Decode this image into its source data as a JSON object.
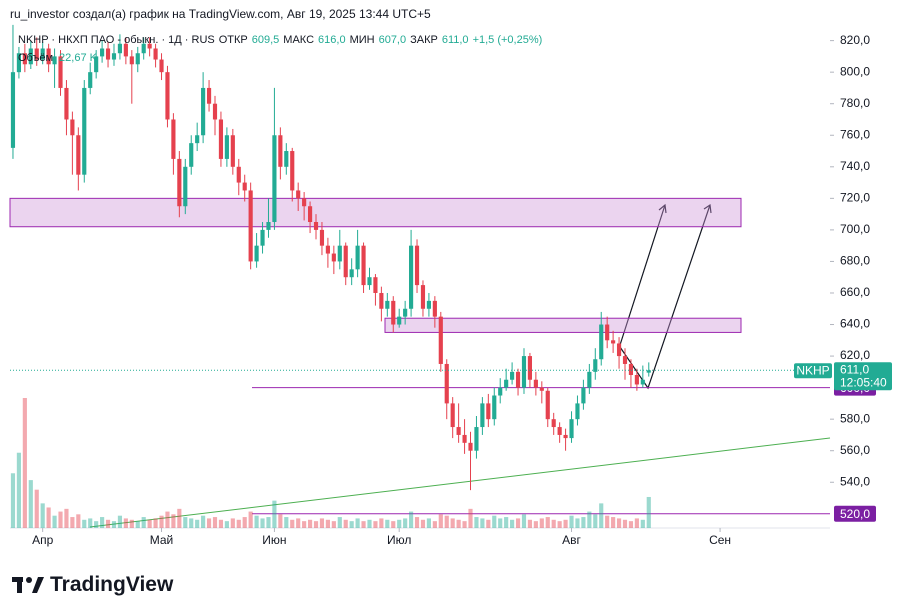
{
  "header": {
    "attribution": "ru_investor создал(а) график на TradingView.com, Авг 19, 2025 13:44 UTC+5",
    "brand": "TradingView"
  },
  "chart_data": {
    "type": "candlestick",
    "symbol_line": "NKHP · НКХП ПАО - обыкн. · 1Д · RUS",
    "ohlc_labels": [
      {
        "label": "ОТКР",
        "value": "609,5"
      },
      {
        "label": "МАКС",
        "value": "616,0"
      },
      {
        "label": "МИН",
        "value": "607,0"
      },
      {
        "label": "ЗАКР",
        "value": "611,0"
      }
    ],
    "change": "+1,5 (+0,25%)",
    "volume_label": "Объём",
    "volume_value": "22,67 K",
    "up_color": "#22ab94",
    "down_color": "#e5414e",
    "candles": [
      [
        752,
        830,
        745,
        800
      ],
      [
        800,
        816,
        796,
        812
      ],
      [
        812,
        818,
        800,
        805
      ],
      [
        805,
        820,
        802,
        815
      ],
      [
        815,
        822,
        804,
        808
      ],
      [
        808,
        819,
        805,
        815
      ],
      [
        815,
        818,
        800,
        805
      ],
      [
        805,
        815,
        790,
        810
      ],
      [
        810,
        814,
        785,
        790
      ],
      [
        790,
        795,
        760,
        770
      ],
      [
        770,
        775,
        735,
        760
      ],
      [
        760,
        765,
        725,
        735
      ],
      [
        735,
        795,
        730,
        790
      ],
      [
        790,
        806,
        786,
        800
      ],
      [
        800,
        814,
        796,
        810
      ],
      [
        810,
        820,
        806,
        815
      ],
      [
        815,
        819,
        803,
        808
      ],
      [
        808,
        818,
        804,
        812
      ],
      [
        812,
        824,
        808,
        818
      ],
      [
        818,
        822,
        805,
        810
      ],
      [
        810,
        814,
        780,
        805
      ],
      [
        805,
        816,
        800,
        812
      ],
      [
        812,
        822,
        808,
        818
      ],
      [
        818,
        822,
        810,
        815
      ],
      [
        815,
        818,
        803,
        808
      ],
      [
        808,
        812,
        795,
        800
      ],
      [
        800,
        804,
        765,
        770
      ],
      [
        770,
        774,
        735,
        745
      ],
      [
        745,
        750,
        708,
        715
      ],
      [
        715,
        745,
        710,
        740
      ],
      [
        740,
        760,
        735,
        755
      ],
      [
        755,
        768,
        750,
        760
      ],
      [
        760,
        800,
        755,
        790
      ],
      [
        790,
        795,
        775,
        780
      ],
      [
        780,
        785,
        760,
        770
      ],
      [
        770,
        775,
        740,
        745
      ],
      [
        745,
        765,
        740,
        760
      ],
      [
        760,
        764,
        735,
        740
      ],
      [
        740,
        745,
        722,
        730
      ],
      [
        730,
        735,
        718,
        725
      ],
      [
        725,
        730,
        675,
        680
      ],
      [
        680,
        698,
        676,
        690
      ],
      [
        690,
        705,
        685,
        700
      ],
      [
        700,
        720,
        695,
        705
      ],
      [
        705,
        790,
        700,
        760
      ],
      [
        760,
        765,
        732,
        740
      ],
      [
        740,
        755,
        735,
        750
      ],
      [
        750,
        752,
        718,
        725
      ],
      [
        725,
        730,
        712,
        720
      ],
      [
        720,
        724,
        706,
        715
      ],
      [
        715,
        718,
        698,
        705
      ],
      [
        705,
        710,
        694,
        700
      ],
      [
        700,
        705,
        684,
        690
      ],
      [
        690,
        695,
        676,
        685
      ],
      [
        685,
        690,
        672,
        680
      ],
      [
        680,
        700,
        675,
        690
      ],
      [
        690,
        692,
        665,
        670
      ],
      [
        670,
        682,
        665,
        675
      ],
      [
        675,
        700,
        670,
        690
      ],
      [
        690,
        692,
        660,
        665
      ],
      [
        665,
        676,
        662,
        670
      ],
      [
        670,
        672,
        652,
        660
      ],
      [
        660,
        664,
        642,
        650
      ],
      [
        650,
        660,
        645,
        655
      ],
      [
        655,
        658,
        635,
        640
      ],
      [
        640,
        650,
        638,
        645
      ],
      [
        645,
        655,
        640,
        650
      ],
      [
        650,
        700,
        645,
        690
      ],
      [
        690,
        694,
        660,
        665
      ],
      [
        665,
        668,
        645,
        650
      ],
      [
        650,
        660,
        645,
        655
      ],
      [
        655,
        658,
        638,
        645
      ],
      [
        645,
        648,
        610,
        615
      ],
      [
        615,
        618,
        580,
        590
      ],
      [
        590,
        594,
        568,
        575
      ],
      [
        575,
        590,
        565,
        570
      ],
      [
        570,
        580,
        558,
        565
      ],
      [
        565,
        572,
        535,
        560
      ],
      [
        560,
        582,
        555,
        575
      ],
      [
        575,
        594,
        570,
        590
      ],
      [
        590,
        596,
        575,
        580
      ],
      [
        580,
        600,
        576,
        595
      ],
      [
        595,
        606,
        590,
        600
      ],
      [
        600,
        612,
        598,
        605
      ],
      [
        605,
        616,
        602,
        610
      ],
      [
        610,
        612,
        595,
        600
      ],
      [
        600,
        625,
        596,
        620
      ],
      [
        620,
        622,
        600,
        605
      ],
      [
        605,
        610,
        595,
        600
      ],
      [
        600,
        604,
        590,
        598
      ],
      [
        598,
        600,
        575,
        580
      ],
      [
        580,
        584,
        570,
        575
      ],
      [
        575,
        578,
        565,
        570
      ],
      [
        570,
        574,
        560,
        568
      ],
      [
        568,
        585,
        565,
        580
      ],
      [
        580,
        595,
        576,
        590
      ],
      [
        590,
        605,
        586,
        600
      ],
      [
        600,
        615,
        596,
        610
      ],
      [
        610,
        625,
        605,
        618
      ],
      [
        618,
        648,
        614,
        640
      ],
      [
        640,
        645,
        625,
        630
      ],
      [
        630,
        636,
        622,
        628
      ],
      [
        628,
        632,
        612,
        620
      ],
      [
        620,
        625,
        605,
        615
      ],
      [
        615,
        618,
        600,
        608
      ],
      [
        608,
        612,
        598,
        602
      ],
      [
        602,
        614,
        600,
        605
      ],
      [
        609.5,
        616,
        607,
        611
      ]
    ],
    "volumes": [
      40,
      55,
      95,
      35,
      28,
      18,
      15,
      9,
      12,
      14,
      8,
      10,
      6,
      7,
      5,
      8,
      6,
      5,
      9,
      7,
      6,
      5,
      8,
      6,
      7,
      9,
      12,
      10,
      14,
      8,
      7,
      6,
      9,
      7,
      8,
      6,
      5,
      7,
      6,
      8,
      12,
      9,
      7,
      8,
      20,
      10,
      8,
      6,
      7,
      5,
      6,
      5,
      7,
      6,
      5,
      8,
      6,
      5,
      7,
      5,
      6,
      5,
      7,
      6,
      5,
      6,
      7,
      12,
      8,
      6,
      7,
      5,
      10,
      9,
      7,
      6,
      5,
      14,
      8,
      7,
      6,
      9,
      7,
      8,
      6,
      7,
      10,
      6,
      5,
      7,
      8,
      6,
      5,
      6,
      9,
      7,
      8,
      12,
      10,
      18,
      9,
      8,
      7,
      6,
      5,
      7,
      6,
      22.67
    ],
    "ylim": [
      511,
      828
    ],
    "yticks": [
      {
        "value": 540,
        "label": "540,0"
      },
      {
        "value": 560,
        "label": "560,0"
      },
      {
        "value": 580,
        "label": "580,0"
      },
      {
        "value": 620,
        "label": "620,0"
      },
      {
        "value": 640,
        "label": "640,0"
      },
      {
        "value": 660,
        "label": "660,0"
      },
      {
        "value": 680,
        "label": "680,0"
      },
      {
        "value": 700,
        "label": "700,0"
      },
      {
        "value": 720,
        "label": "720,0"
      },
      {
        "value": 740,
        "label": "740,0"
      },
      {
        "value": 760,
        "label": "760,0"
      },
      {
        "value": 780,
        "label": "780,0"
      },
      {
        "value": 800,
        "label": "800,0"
      },
      {
        "value": 820,
        "label": "820,0"
      }
    ],
    "xlim": [
      0,
      138
    ],
    "xticks": [
      {
        "value": 5,
        "label": "Апр"
      },
      {
        "value": 25,
        "label": "Май"
      },
      {
        "value": 44,
        "label": "Июн"
      },
      {
        "value": 65,
        "label": "Июл"
      },
      {
        "value": 94,
        "label": "Авг"
      },
      {
        "value": 119,
        "label": "Сен"
      }
    ],
    "zones": [
      {
        "top": 720,
        "bottom": 702
      },
      {
        "top": 644,
        "bottom": 635
      }
    ],
    "levels": [
      {
        "value": 600,
        "label": "600,0"
      },
      {
        "value": 520,
        "label": "520,0"
      }
    ],
    "last_price": {
      "value": 611,
      "label": "611,0",
      "symbol": "NKHP",
      "countdown": "12:05:40"
    }
  }
}
